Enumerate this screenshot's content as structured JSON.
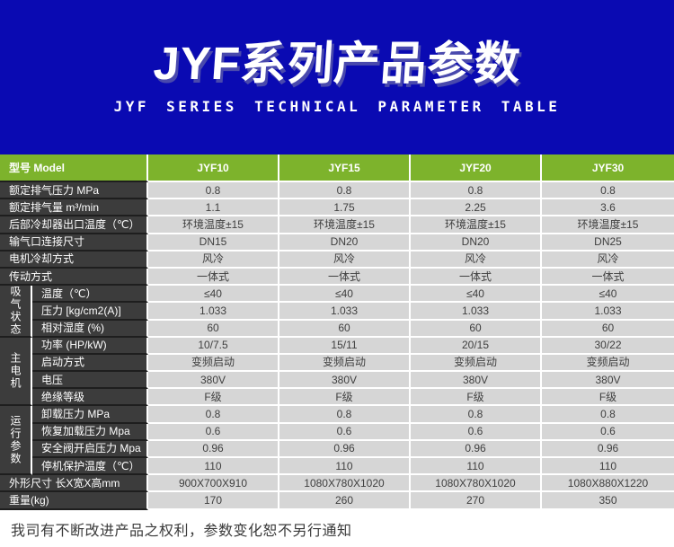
{
  "banner": {
    "title": "JYF系列产品参数",
    "subtitle": "JYF SERIES TECHNICAL PARAMETER TABLE"
  },
  "table": {
    "header": {
      "model_label": "型号 Model",
      "columns": [
        "JYF10",
        "JYF15",
        "JYF20",
        "JYF30"
      ]
    },
    "rows": [
      {
        "label": "额定排气压力 MPa",
        "values": [
          "0.8",
          "0.8",
          "0.8",
          "0.8"
        ]
      },
      {
        "label": "额定排气量 m³/min",
        "values": [
          "1.1",
          "1.75",
          "2.25",
          "3.6"
        ]
      },
      {
        "label": "后部冷却器出口温度（℃）",
        "values": [
          "环境温度±15",
          "环境温度±15",
          "环境温度±15",
          "环境温度±15"
        ]
      },
      {
        "label": "输气口连接尺寸",
        "values": [
          "DN15",
          "DN20",
          "DN20",
          "DN25"
        ]
      },
      {
        "label": "电机冷却方式",
        "values": [
          "风冷",
          "风冷",
          "风冷",
          "风冷"
        ]
      },
      {
        "label": "传动方式",
        "values": [
          "一体式",
          "一体式",
          "一体式",
          "一体式"
        ]
      },
      {
        "group": "吸气状态",
        "group_span": 3,
        "label": "温度（℃）",
        "values": [
          "≤40",
          "≤40",
          "≤40",
          "≤40"
        ]
      },
      {
        "in_group": true,
        "label": "压力 [kg/cm2(A)]",
        "values": [
          "1.033",
          "1.033",
          "1.033",
          "1.033"
        ]
      },
      {
        "in_group": true,
        "label": "相对湿度 (%)",
        "values": [
          "60",
          "60",
          "60",
          "60"
        ]
      },
      {
        "group": "主电机",
        "group_span": 4,
        "label": "功率 (HP/kW)",
        "values": [
          "10/7.5",
          "15/11",
          "20/15",
          "30/22"
        ]
      },
      {
        "in_group": true,
        "label": "启动方式",
        "values": [
          "变频启动",
          "变频启动",
          "变频启动",
          "变频启动"
        ]
      },
      {
        "in_group": true,
        "label": "电压",
        "values": [
          "380V",
          "380V",
          "380V",
          "380V"
        ]
      },
      {
        "in_group": true,
        "label": "绝缘等级",
        "values": [
          "F级",
          "F级",
          "F级",
          "F级"
        ]
      },
      {
        "group": "运行参数",
        "group_span": 4,
        "label": "卸载压力 MPa",
        "values": [
          "0.8",
          "0.8",
          "0.8",
          "0.8"
        ]
      },
      {
        "in_group": true,
        "label": "恢复加载压力 Mpa",
        "values": [
          "0.6",
          "0.6",
          "0.6",
          "0.6"
        ]
      },
      {
        "in_group": true,
        "label": "安全阀开启压力 Mpa",
        "values": [
          "0.96",
          "0.96",
          "0.96",
          "0.96"
        ]
      },
      {
        "in_group": true,
        "label": "停机保护温度（℃）",
        "values": [
          "110",
          "110",
          "110",
          "110"
        ]
      },
      {
        "label": "外形尺寸 长X宽X高mm",
        "values": [
          "900X700X910",
          "1080X780X1020",
          "1080X780X1020",
          "1080X880X1220"
        ]
      },
      {
        "label": "重量(kg)",
        "values": [
          "170",
          "260",
          "270",
          "350"
        ]
      }
    ]
  },
  "footer": {
    "note": "我司有不断改进产品之权利，参数变化恕不另行通知"
  },
  "colors": {
    "banner_bg": "#0A0AB2",
    "header_green": "#7DB32C",
    "label_dark": "#3C3C3C",
    "cell_gray": "#D6D6D6",
    "separator_dark": "#1E1E1E"
  }
}
